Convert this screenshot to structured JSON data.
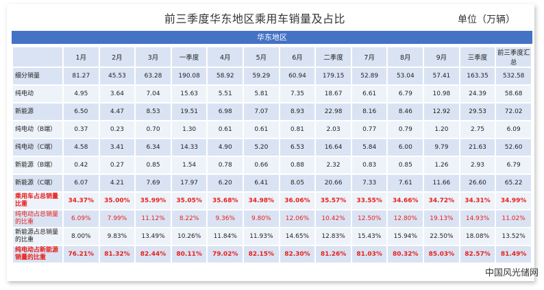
{
  "title": "前三季度华东地区乘用车销量及占比",
  "unit": "单位（万辆）",
  "region": "华东地区",
  "watermark": "中国风光储网",
  "columns": [
    "1月",
    "2月",
    "3月",
    "一季度",
    "4月",
    "5月",
    "6月",
    "二季度",
    "7月",
    "8月",
    "9月",
    "三季度",
    "前三季度汇总"
  ],
  "rows": [
    {
      "label": "细分销量",
      "style": "band",
      "values": [
        "81.27",
        "45.53",
        "63.28",
        "190.08",
        "58.92",
        "59.29",
        "60.94",
        "179.15",
        "52.89",
        "53.04",
        "57.41",
        "163.35",
        "532.58"
      ]
    },
    {
      "label": "纯电动",
      "style": "plain",
      "values": [
        "4.95",
        "3.64",
        "7.04",
        "15.63",
        "5.51",
        "5.81",
        "7.35",
        "18.67",
        "6.61",
        "6.79",
        "10.98",
        "24.39",
        "58.68"
      ]
    },
    {
      "label": "新能源",
      "style": "band",
      "values": [
        "6.50",
        "4.47",
        "8.53",
        "19.51",
        "6.98",
        "7.07",
        "8.93",
        "22.98",
        "8.16",
        "8.46",
        "12.92",
        "29.53",
        "72.02"
      ]
    },
    {
      "label": "纯电动（B端）",
      "style": "plain",
      "values": [
        "0.37",
        "0.23",
        "0.70",
        "1.30",
        "0.61",
        "0.61",
        "0.81",
        "2.03",
        "0.77",
        "0.79",
        "1.20",
        "2.75",
        "6.09"
      ]
    },
    {
      "label": "纯电动（C端）",
      "style": "band",
      "values": [
        "4.58",
        "3.41",
        "6.34",
        "14.33",
        "4.90",
        "5.20",
        "6.53",
        "16.64",
        "5.84",
        "6.00",
        "9.79",
        "21.63",
        "52.60"
      ]
    },
    {
      "label": "新能源（B端）",
      "style": "plain",
      "values": [
        "0.42",
        "0.27",
        "0.85",
        "1.54",
        "0.78",
        "0.66",
        "0.88",
        "2.32",
        "0.83",
        "0.85",
        "1.26",
        "2.93",
        "6.79"
      ]
    },
    {
      "label": "新能源（C端）",
      "style": "band",
      "values": [
        "6.07",
        "4.21",
        "7.69",
        "17.97",
        "6.20",
        "6.41",
        "8.05",
        "20.66",
        "7.33",
        "7.61",
        "11.66",
        "26.60",
        "65.22"
      ]
    },
    {
      "label": "乘用车占总销量比重",
      "style": "plain-rb",
      "values": [
        "34.37%",
        "35.00%",
        "35.99%",
        "35.05%",
        "35.68%",
        "34.98%",
        "36.06%",
        "35.57%",
        "33.55%",
        "34.66%",
        "34.72%",
        "34.31%",
        "34.99%"
      ]
    },
    {
      "label": "纯电动占总销量的比重",
      "style": "band-r",
      "values": [
        "6.09%",
        "7.99%",
        "11.12%",
        "8.22%",
        "9.36%",
        "9.80%",
        "12.06%",
        "10.42%",
        "12.50%",
        "12.80%",
        "19.13%",
        "14.93%",
        "11.02%"
      ]
    },
    {
      "label": "新能源占总销量的比重",
      "style": "plain",
      "values": [
        "8.00%",
        "9.83%",
        "13.49%",
        "10.26%",
        "11.84%",
        "11.93%",
        "14.65%",
        "12.83%",
        "15.43%",
        "15.94%",
        "22.50%",
        "18.08%",
        "13.52%"
      ]
    },
    {
      "label": "纯电动占新能源销量的比重",
      "style": "band-rb",
      "values": [
        "76.21%",
        "81.32%",
        "82.44%",
        "80.11%",
        "79.02%",
        "82.15%",
        "82.30%",
        "81.26%",
        "81.03%",
        "80.32%",
        "85.03%",
        "82.57%",
        "81.49%"
      ]
    }
  ]
}
